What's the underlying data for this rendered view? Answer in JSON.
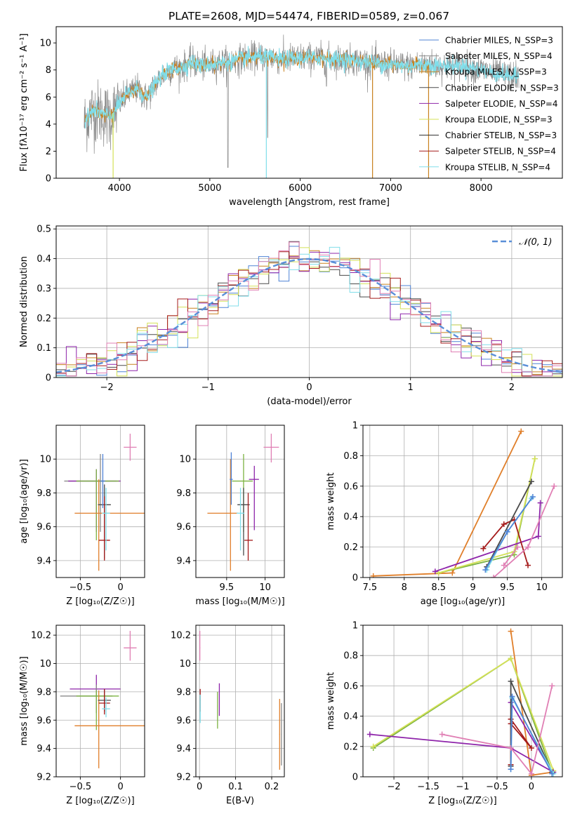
{
  "title": "PLATE=2608, MJD=54474, FIBERID=0589, z=0.067",
  "colors": {
    "chabrier_miles": "#4f83d6",
    "salpeter_miles": "#8a8a8a",
    "kroupa_miles": "#c8811f",
    "chabrier_elodie": "#4a4a4a",
    "salpeter_elodie": "#8e24aa",
    "kroupa_elodie": "#d4e157",
    "chabrier_stelib": "#2b2b2b",
    "salpeter_stelib": "#a51b1b",
    "kroupa_stelib": "#80deea",
    "data_pink": "#e07fb4",
    "orange_line": "#e07f2a",
    "green_line": "#7cb342",
    "gaussian": "#5a8fd8"
  },
  "chart_data": [
    {
      "id": "spectrum",
      "type": "line",
      "xlabel": "wavelength [Angstrom, rest frame]",
      "ylabel": "Flux [fλ10⁻¹⁷ erg cm⁻² s⁻¹ A⁻¹]",
      "xlim": [
        3300,
        8900
      ],
      "ylim": [
        0,
        11.2
      ],
      "xticks": [
        4000,
        5000,
        6000,
        7000,
        8000
      ],
      "yticks": [
        0,
        2,
        4,
        6,
        8,
        10
      ],
      "grid": false,
      "legend_position": "top-right",
      "legend": [
        "Chabrier MILES, N_SSP=3",
        "Salpeter MILES, N_SSP=4",
        "Kroupa MILES, N_SSP=3",
        "Chabrier ELODIE, N_SSP=3",
        "Salpeter ELODIE, N_SSP=4",
        "Kroupa ELODIE, N_SSP=3",
        "Chabrier STELIB, N_SSP=3",
        "Salpeter STELIB, N_SSP=4",
        "Kroupa STELIB, N_SSP=4"
      ],
      "continuum": {
        "x": [
          3600,
          3700,
          3800,
          3900,
          4000,
          4100,
          4200,
          4300,
          4400,
          4500,
          4600,
          4700,
          4800,
          4900,
          5000,
          5200,
          5400,
          5600,
          5800,
          6000,
          6200,
          6400,
          6600,
          6800,
          7000,
          7200,
          7400,
          7600,
          7800,
          8000,
          8200,
          8400
        ],
        "y": [
          4.0,
          5.0,
          4.8,
          4.5,
          5.5,
          6.3,
          6.6,
          5.9,
          7.0,
          7.8,
          8.1,
          8.2,
          8.6,
          8.3,
          8.4,
          8.6,
          8.9,
          9.0,
          8.8,
          8.9,
          8.9,
          8.8,
          8.7,
          8.5,
          8.4,
          8.3,
          8.4,
          8.3,
          8.3,
          8.0,
          7.7,
          7.5
        ]
      }
    },
    {
      "id": "residuals",
      "type": "histogram",
      "xlabel": "(data-model)/error",
      "ylabel": "Normed distribution",
      "xlim": [
        -2.5,
        2.5
      ],
      "ylim": [
        0,
        0.51
      ],
      "xticks": [
        -2,
        -1,
        0,
        1,
        2
      ],
      "yticks": [
        0.0,
        0.1,
        0.2,
        0.3,
        0.4,
        0.5
      ],
      "grid": true,
      "legend_position": "top-right",
      "legend": [
        "𝒩(0, 1)"
      ],
      "bin_width": 0.1
    },
    {
      "id": "age_vs_Z",
      "type": "errorbar",
      "xlabel": "Z [log₁₀(Z/Z☉)]",
      "ylabel": "age  [log₁₀(age/yr)]",
      "xlim": [
        -0.8,
        0.3
      ],
      "ylim": [
        9.3,
        10.2
      ],
      "xticks": [
        -0.5,
        0.0
      ],
      "yticks": [
        9.4,
        9.6,
        9.8,
        10.0
      ],
      "grid": true,
      "points": [
        {
          "x": 0.12,
          "y": 10.07,
          "xerr": [
            0.08,
            0.08
          ],
          "yerr": [
            0.08,
            0.08
          ],
          "color": "#e07fb4"
        },
        {
          "x": -0.25,
          "y": 9.87,
          "xerr": [
            0.45,
            0.2
          ],
          "yerr": [
            0.3,
            0.16
          ],
          "color": "#8a8a8a"
        },
        {
          "x": -0.3,
          "y": 9.87,
          "xerr": [
            0.35,
            0.3
          ],
          "yerr": [
            0.3,
            0.07
          ],
          "color": "#8e24aa"
        },
        {
          "x": -0.3,
          "y": 9.87,
          "xerr": [
            0.25,
            0.28
          ],
          "yerr": [
            0.35,
            0.07
          ],
          "color": "#7cb342"
        },
        {
          "x": -0.27,
          "y": 9.68,
          "xerr": [
            0.3,
            0.58
          ],
          "yerr": [
            0.34,
            0.2
          ],
          "color": "#e07f2a"
        },
        {
          "x": -0.2,
          "y": 9.73,
          "xerr": [
            0.08,
            0.08
          ],
          "yerr": [
            0.32,
            0.12
          ],
          "color": "#4a4a4a"
        },
        {
          "x": -0.2,
          "y": 9.52,
          "xerr": [
            0.07,
            0.07
          ],
          "yerr": [
            0.12,
            0.26
          ],
          "color": "#a51b1b"
        },
        {
          "x": -0.18,
          "y": 9.68,
          "xerr": [
            0.05,
            0.05
          ],
          "yerr": [
            0.22,
            0.15
          ],
          "color": "#80deea"
        },
        {
          "x": -0.22,
          "y": 9.87,
          "xerr": [
            0.03,
            0.03
          ],
          "yerr": [
            0.16,
            0.16
          ],
          "color": "#4f83d6"
        }
      ]
    },
    {
      "id": "age_vs_mass",
      "type": "errorbar",
      "xlabel": "mass [log₁₀(M/M☉)]",
      "ylabel": "",
      "xlim": [
        9.1,
        10.25
      ],
      "ylim": [
        9.3,
        10.2
      ],
      "xticks": [
        9.5,
        10.0
      ],
      "yticks": [
        9.4,
        9.6,
        9.8,
        10.0
      ],
      "grid": true,
      "points": [
        {
          "x": 10.08,
          "y": 10.07,
          "xerr": [
            0.1,
            0.1
          ],
          "yerr": [
            0.09,
            0.08
          ],
          "color": "#e07fb4"
        },
        {
          "x": 9.72,
          "y": 9.87,
          "xerr": [
            0.15,
            0.12
          ],
          "yerr": [
            0.3,
            0.16
          ],
          "color": "#7cb342"
        },
        {
          "x": 9.86,
          "y": 9.88,
          "xerr": [
            0.07,
            0.06
          ],
          "yerr": [
            0.3,
            0.08
          ],
          "color": "#8e24aa"
        },
        {
          "x": 9.55,
          "y": 9.68,
          "xerr": [
            0.3,
            0.1
          ],
          "yerr": [
            0.34,
            0.32
          ],
          "color": "#e07f2a"
        },
        {
          "x": 9.72,
          "y": 9.73,
          "xerr": [
            0.08,
            0.08
          ],
          "yerr": [
            0.3,
            0.1
          ],
          "color": "#4a4a4a"
        },
        {
          "x": 9.78,
          "y": 9.52,
          "xerr": [
            0.05,
            0.06
          ],
          "yerr": [
            0.12,
            0.28
          ],
          "color": "#a51b1b"
        },
        {
          "x": 9.68,
          "y": 9.68,
          "xerr": [
            0.05,
            0.05
          ],
          "yerr": [
            0.22,
            0.15
          ],
          "color": "#80deea"
        },
        {
          "x": 9.56,
          "y": 9.88,
          "xerr": [
            0.02,
            0.02
          ],
          "yerr": [
            0.15,
            0.16
          ],
          "color": "#4f83d6"
        }
      ]
    },
    {
      "id": "weight_vs_age",
      "type": "line",
      "xlabel": "age  [log₁₀(age/yr)]",
      "ylabel": "mass weight",
      "xlim": [
        7.4,
        10.3
      ],
      "ylim": [
        0,
        1.0
      ],
      "xticks": [
        7.5,
        8.0,
        8.5,
        9.0,
        9.5,
        10.0
      ],
      "yticks": [
        0.0,
        0.2,
        0.4,
        0.6,
        0.8,
        1.0
      ],
      "grid": true,
      "series": [
        {
          "color": "#e07f2a",
          "x": [
            7.55,
            8.7,
            9.7
          ],
          "y": [
            0.01,
            0.03,
            0.96
          ]
        },
        {
          "color": "#7cb342",
          "x": [
            8.5,
            9.6,
            9.9
          ],
          "y": [
            0.03,
            0.15,
            0.78
          ]
        },
        {
          "color": "#d4e157",
          "x": [
            8.5,
            9.6,
            9.9
          ],
          "y": [
            0.03,
            0.17,
            0.78
          ]
        },
        {
          "color": "#8e24aa",
          "x": [
            8.45,
            9.95,
            9.98
          ],
          "y": [
            0.04,
            0.27,
            0.49
          ]
        },
        {
          "color": "#a51b1b",
          "x": [
            9.15,
            9.45,
            9.6,
            9.8
          ],
          "y": [
            0.19,
            0.35,
            0.38,
            0.08
          ]
        },
        {
          "color": "#4a4a4a",
          "x": [
            9.2,
            9.85
          ],
          "y": [
            0.07,
            0.63
          ]
        },
        {
          "color": "#80deea",
          "x": [
            9.2,
            9.5,
            9.85
          ],
          "y": [
            0.05,
            0.3,
            0.52
          ]
        },
        {
          "color": "#4f83d6",
          "x": [
            9.18,
            9.5,
            9.87
          ],
          "y": [
            0.05,
            0.3,
            0.53
          ]
        },
        {
          "color": "#e07fb4",
          "x": [
            9.3,
            9.8,
            10.18
          ],
          "y": [
            0.0,
            0.2,
            0.6
          ]
        },
        {
          "color": "#e07fb4",
          "x": [
            9.45,
            9.65
          ],
          "y": [
            0.08,
            0.2
          ]
        }
      ]
    },
    {
      "id": "mass_vs_Z",
      "type": "errorbar",
      "xlabel": "Z [log₁₀(Z/Z☉)]",
      "ylabel": "mass [log₁₀(M/M☉)]",
      "xlim": [
        -0.8,
        0.3
      ],
      "ylim": [
        9.2,
        10.27
      ],
      "xticks": [
        -0.5,
        0.0
      ],
      "yticks": [
        9.2,
        9.4,
        9.6,
        9.8,
        10.0,
        10.2
      ],
      "grid": true,
      "points": [
        {
          "x": 0.12,
          "y": 10.11,
          "xerr": [
            0.08,
            0.08
          ],
          "yerr": [
            0.09,
            0.12
          ],
          "color": "#e07fb4"
        },
        {
          "x": -0.3,
          "y": 9.82,
          "xerr": [
            0.33,
            0.3
          ],
          "yerr": [
            0.17,
            0.1
          ],
          "color": "#8e24aa"
        },
        {
          "x": -0.3,
          "y": 9.77,
          "xerr": [
            0.45,
            0.2
          ],
          "yerr": [
            0.12,
            0.08
          ],
          "color": "#8a8a8a"
        },
        {
          "x": -0.3,
          "y": 9.77,
          "xerr": [
            0.25,
            0.28
          ],
          "yerr": [
            0.24,
            0.04
          ],
          "color": "#7cb342"
        },
        {
          "x": -0.27,
          "y": 9.56,
          "xerr": [
            0.3,
            0.58
          ],
          "yerr": [
            0.3,
            0.25
          ],
          "color": "#e07f2a"
        },
        {
          "x": -0.2,
          "y": 9.74,
          "xerr": [
            0.08,
            0.08
          ],
          "yerr": [
            0.08,
            0.08
          ],
          "color": "#4a4a4a"
        },
        {
          "x": -0.2,
          "y": 9.72,
          "xerr": [
            0.07,
            0.07
          ],
          "yerr": [
            0.08,
            0.1
          ],
          "color": "#a51b1b"
        },
        {
          "x": -0.18,
          "y": 9.68,
          "xerr": [
            0.05,
            0.05
          ],
          "yerr": [
            0.06,
            0.08
          ],
          "color": "#80deea"
        }
      ]
    },
    {
      "id": "mass_vs_ebv",
      "type": "errorbar",
      "xlabel": "E(B-V)",
      "ylabel": "",
      "xlim": [
        -0.01,
        0.235
      ],
      "ylim": [
        9.2,
        10.27
      ],
      "xticks": [
        0.0,
        0.1,
        0.2
      ],
      "yticks": [
        9.2,
        9.4,
        9.6,
        9.8,
        10.0,
        10.2
      ],
      "grid": true,
      "points": [
        {
          "x": 0.001,
          "y": 10.11,
          "xerr": [
            0.001,
            0.001
          ],
          "yerr": [
            0.09,
            0.12
          ],
          "color": "#e07fb4"
        },
        {
          "x": 0.002,
          "y": 9.74,
          "xerr": [
            0.001,
            0.001
          ],
          "yerr": [
            0.08,
            0.08
          ],
          "color": "#a51b1b"
        },
        {
          "x": 0.002,
          "y": 9.68,
          "xerr": [
            0.001,
            0.001
          ],
          "yerr": [
            0.1,
            0.1
          ],
          "color": "#80deea"
        },
        {
          "x": 0.055,
          "y": 9.78,
          "xerr": [
            0.001,
            0.001
          ],
          "yerr": [
            0.15,
            0.08
          ],
          "color": "#8e24aa"
        },
        {
          "x": 0.05,
          "y": 9.7,
          "xerr": [
            0.001,
            0.001
          ],
          "yerr": [
            0.16,
            0.1
          ],
          "color": "#7cb342"
        },
        {
          "x": 0.222,
          "y": 9.5,
          "xerr": [
            0.001,
            0.001
          ],
          "yerr": [
            0.25,
            0.25
          ],
          "color": "#e07f2a"
        },
        {
          "x": 0.227,
          "y": 9.5,
          "xerr": [
            0.001,
            0.001
          ],
          "yerr": [
            0.22,
            0.22
          ],
          "color": "#8a8a8a"
        }
      ]
    },
    {
      "id": "weight_vs_Z",
      "type": "line",
      "xlabel": "Z [log₁₀(Z/Z☉)]",
      "ylabel": "mass weight",
      "xlim": [
        -2.45,
        0.45
      ],
      "ylim": [
        0,
        1.0
      ],
      "xticks": [
        -2.0,
        -1.5,
        -1.0,
        -0.5,
        0.0
      ],
      "yticks": [
        0.0,
        0.2,
        0.4,
        0.6,
        0.8,
        1.0
      ],
      "grid": true,
      "series": [
        {
          "color": "#e07f2a",
          "x": [
            -0.3,
            0.0,
            0.3
          ],
          "y": [
            0.96,
            0.01,
            0.03
          ]
        },
        {
          "color": "#7cb342",
          "x": [
            -2.3,
            -0.3,
            0.3
          ],
          "y": [
            0.19,
            0.78,
            0.03
          ]
        },
        {
          "color": "#d4e157",
          "x": [
            -2.3,
            -0.3,
            0.32
          ],
          "y": [
            0.2,
            0.78,
            0.04
          ]
        },
        {
          "color": "#8e24aa",
          "x": [
            -2.35,
            -0.3,
            0.32
          ],
          "y": [
            0.28,
            0.19,
            0.03
          ]
        },
        {
          "color": "#8e24aa",
          "x": [
            -0.3,
            0.3
          ],
          "y": [
            0.49,
            0.03
          ]
        },
        {
          "color": "#a51b1b",
          "x": [
            -0.3,
            -0.3,
            0.0,
            -0.3
          ],
          "y": [
            0.08,
            0.38,
            0.19,
            0.35
          ]
        },
        {
          "color": "#4a4a4a",
          "x": [
            -0.3,
            -0.3,
            0.3
          ],
          "y": [
            0.07,
            0.63,
            0.03
          ]
        },
        {
          "color": "#80deea",
          "x": [
            -0.3,
            -0.28,
            0.32
          ],
          "y": [
            0.05,
            0.52,
            0.02
          ]
        },
        {
          "color": "#4f83d6",
          "x": [
            -0.3,
            -0.28,
            0.3
          ],
          "y": [
            0.05,
            0.53,
            0.02
          ]
        },
        {
          "color": "#e07fb4",
          "x": [
            -1.3,
            -0.3,
            0.0,
            0.3
          ],
          "y": [
            0.28,
            0.19,
            0.02,
            0.6
          ]
        }
      ]
    }
  ]
}
